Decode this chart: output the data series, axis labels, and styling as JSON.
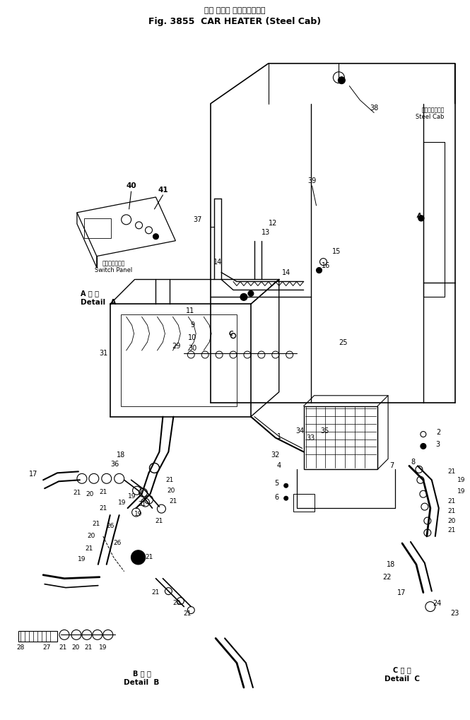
{
  "title_jp": "カー ヒータ ステールキャブ",
  "title_en": "Fig. 3855  CAR HEATER (Steel Cab)",
  "bg_color": "#ffffff",
  "lc": "#000000",
  "fig_width": 6.65,
  "fig_height": 10.19,
  "dpi": 100,
  "steel_cab_jp": "ステールキャブ",
  "steel_cab_en": "Steel Cab",
  "switch_panel_jp": "スイッチパネル",
  "switch_panel_en": "Switch Panel",
  "detail_a_jp": "A 詳 細",
  "detail_a_en": "Detail  A",
  "detail_b_jp": "B 詳 細",
  "detail_b_en": "Detail  B",
  "detail_c_jp": "C 詳 細",
  "detail_c_en": "Detail  C"
}
